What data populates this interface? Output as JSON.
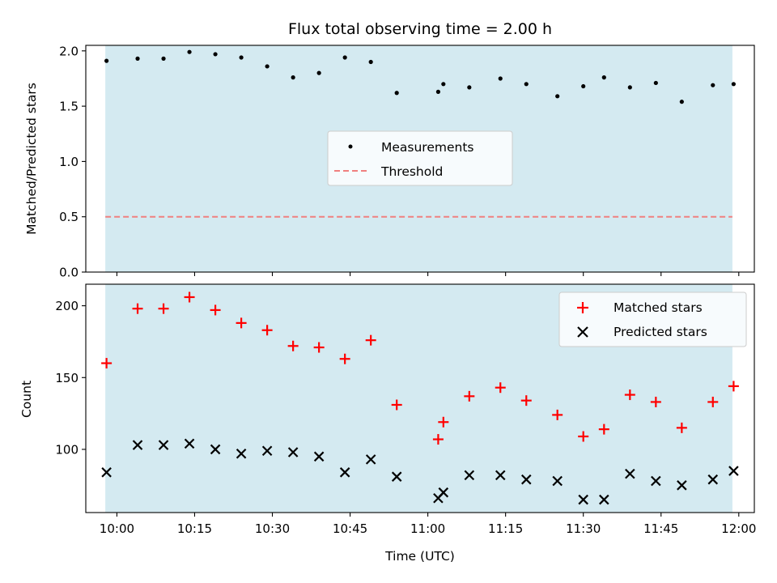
{
  "chart_data": {
    "title": "Flux total observing time = 2.00 h",
    "shaded_span_color": "#d4eaf1",
    "x_axis": {
      "label": "Time (UTC)",
      "ticks": [
        "10:00",
        "10:15",
        "10:30",
        "10:45",
        "11:00",
        "11:15",
        "11:30",
        "11:45",
        "12:00"
      ],
      "range": [
        "09:54",
        "12:03"
      ]
    },
    "x_times": [
      "09:58",
      "10:04",
      "10:09",
      "10:14",
      "10:19",
      "10:24",
      "10:29",
      "10:34",
      "10:39",
      "10:44",
      "10:49",
      "10:54",
      "11:02",
      "11:03",
      "11:08",
      "11:14",
      "11:19",
      "11:25",
      "11:30",
      "11:34",
      "11:39",
      "11:44",
      "11:49",
      "11:55",
      "11:59"
    ],
    "panels": [
      {
        "type": "scatter",
        "ylabel": "Matched/Predicted stars",
        "ylim": [
          0,
          2.05
        ],
        "yticks": [
          "0.0",
          "0.5",
          "1.0",
          "1.5",
          "2.0"
        ],
        "legend_position": "center",
        "series": [
          {
            "name": "Measurements",
            "marker": "dot",
            "color": "#000000",
            "values": [
              1.91,
              1.93,
              1.93,
              1.99,
              1.97,
              1.94,
              1.86,
              1.76,
              1.8,
              1.94,
              1.9,
              1.62,
              1.63,
              1.7,
              1.67,
              1.75,
              1.7,
              1.59,
              1.68,
              1.76,
              1.67,
              1.71,
              1.54,
              1.69,
              1.7
            ]
          },
          {
            "name": "Threshold",
            "style": "dashed",
            "color": "#f08080",
            "value": 0.5
          }
        ]
      },
      {
        "type": "scatter",
        "ylabel": "Count",
        "ylim": [
          56,
          215
        ],
        "yticks": [
          "100",
          "150",
          "200"
        ],
        "legend_position": "top-right",
        "series": [
          {
            "name": "Matched stars",
            "marker": "plus",
            "color": "#ff0000",
            "values": [
              160,
              198,
              198,
              206,
              197,
              188,
              183,
              172,
              171,
              163,
              176,
              131,
              107,
              119,
              137,
              143,
              134,
              124,
              109,
              114,
              138,
              133,
              115,
              133,
              144
            ]
          },
          {
            "name": "Predicted stars",
            "marker": "x",
            "color": "#000000",
            "values": [
              84,
              103,
              103,
              104,
              100,
              97,
              99,
              98,
              95,
              84,
              93,
              81,
              66,
              70,
              82,
              82,
              79,
              78,
              65,
              65,
              83,
              78,
              75,
              79,
              85
            ]
          }
        ]
      }
    ]
  }
}
